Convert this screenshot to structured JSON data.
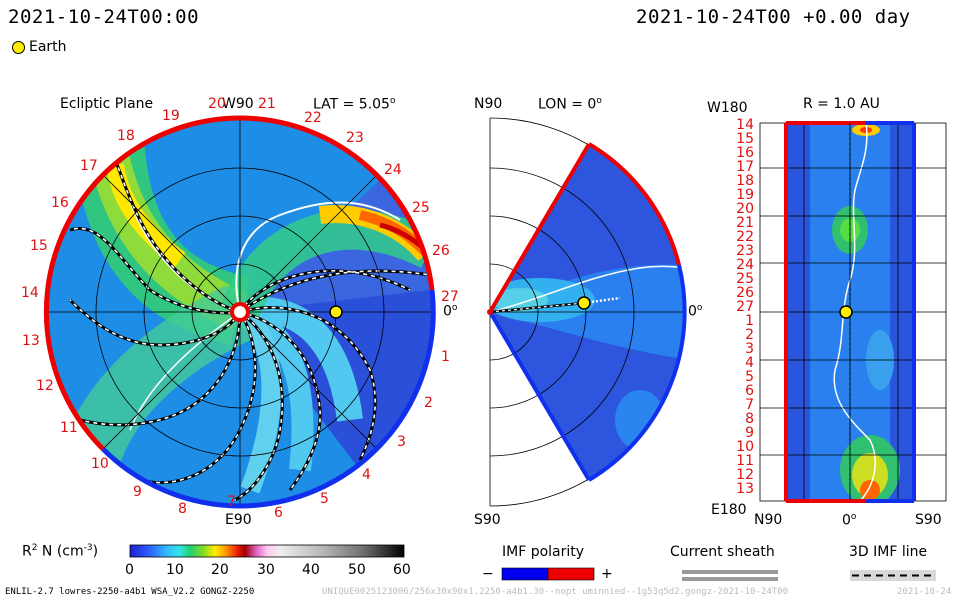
{
  "header": {
    "left_time": "2021-10-24T00:00",
    "right_time": "2021-10-24T00 +0.00 day"
  },
  "legend_top": {
    "earth_label": "Earth",
    "earth_color": "#ffee00"
  },
  "ecliptic": {
    "title": "Ecliptic Plane",
    "top_label": "W90",
    "bottom_label": "E90",
    "right_label": "0",
    "lat_label": "LAT = 5.05",
    "lat_sup": "o",
    "ticks": [
      "19",
      "20",
      "21",
      "22",
      "23",
      "24",
      "25",
      "26",
      "27",
      "1",
      "2",
      "3",
      "4",
      "5",
      "6",
      "7",
      "8",
      "9",
      "10",
      "11",
      "12",
      "13",
      "14",
      "15",
      "16",
      "17",
      "18"
    ]
  },
  "meridional": {
    "top_label": "N90",
    "bottom_label": "S90",
    "lon_label": "LON = 0",
    "right_label": "0"
  },
  "radial": {
    "top_label": "W180",
    "bottom_label": "E180",
    "r_label": "R = 1.0 AU",
    "bottom_left": "N90",
    "bottom_mid": "0",
    "bottom_right": "S90",
    "rows": [
      "14",
      "15",
      "16",
      "17",
      "18",
      "19",
      "20",
      "21",
      "22",
      "23",
      "24",
      "25",
      "26",
      "27",
      "1",
      "2",
      "3",
      "4",
      "5",
      "6",
      "7",
      "8",
      "9",
      "10",
      "11",
      "12",
      "13"
    ]
  },
  "colorbar": {
    "label": "R  N (cm  )",
    "label_prefix": "R",
    "label_sup1": "2",
    "label_mid": " N (cm",
    "label_sup2": "-3",
    "label_end": ")",
    "ticks": [
      "0",
      "10",
      "20",
      "30",
      "40",
      "50",
      "60"
    ]
  },
  "imf": {
    "title": "IMF polarity",
    "minus": "−",
    "plus": "+",
    "neg_color": "#0000ee",
    "pos_color": "#ee0000"
  },
  "sheath": {
    "title": "Current sheath"
  },
  "imf3d": {
    "title": "3D IMF line"
  },
  "footer": {
    "left": "ENLIL-2.7 lowres-2250-a4b1 WSA_V2.2 GONGZ-2250",
    "right_faint": "UNIQUE0025123006/256x30x90x1.2250-a4b1.30--nopt uminnied--1g53q5d2.gongz-2021-10-24T00",
    "right_date": "2021-10-24"
  }
}
